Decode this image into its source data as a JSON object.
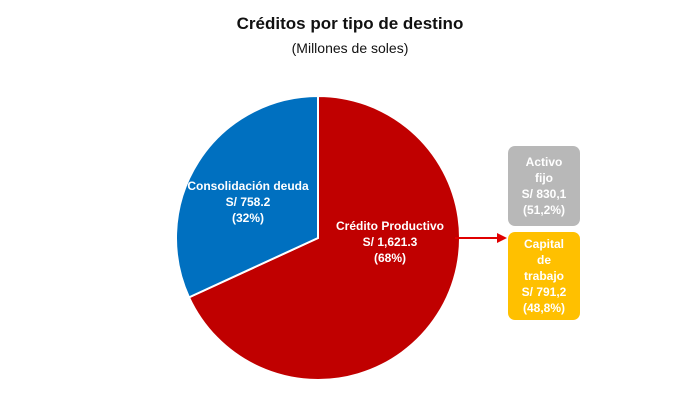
{
  "header": {
    "title": "Créditos por tipo de destino",
    "subtitle": "(Millones de soles)"
  },
  "colors": {
    "credito_productivo": "#C00000",
    "consolidacion_deuda": "#0070C0",
    "activo_fijo": "#B8B8B8",
    "capital_trabajo": "#FFC000",
    "arrow": "#E00000"
  },
  "chart_data": [
    {
      "type": "pie",
      "title": "Créditos por tipo de destino",
      "subtitle": "(Millones de soles)",
      "categories": [
        "Crédito Productivo",
        "Consolidación deuda"
      ],
      "values": [
        1621.3,
        758.2
      ],
      "percentages": [
        68,
        32
      ],
      "labels": [
        [
          "Crédito Productivo",
          "S/  1,621.3",
          "(68%)"
        ],
        [
          "Consolidación deuda",
          "S/ 758.2",
          "(32%)"
        ]
      ]
    },
    {
      "type": "table",
      "parent": "Crédito Productivo",
      "categories": [
        "Activo fijo",
        "Capital de trabajo"
      ],
      "values": [
        830.1,
        791.2
      ],
      "percentages": [
        51.2,
        48.8
      ],
      "labels": [
        [
          "Activo",
          "fijo",
          "S/ 830,1",
          "(51,2%)"
        ],
        [
          "Capital",
          "de",
          "trabajo",
          "S/ 791,2",
          "(48,8%)"
        ]
      ]
    }
  ]
}
